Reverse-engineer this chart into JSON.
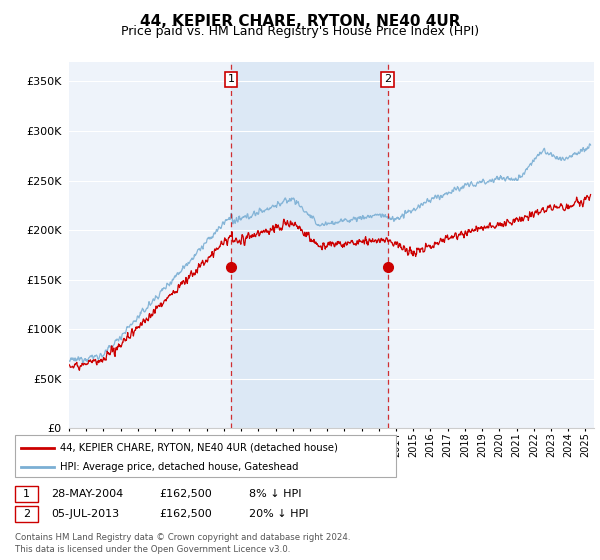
{
  "title": "44, KEPIER CHARE, RYTON, NE40 4UR",
  "subtitle": "Price paid vs. HM Land Registry's House Price Index (HPI)",
  "ylim": [
    0,
    370000
  ],
  "xlim_start": 1995.0,
  "xlim_end": 2025.5,
  "red_color": "#cc0000",
  "blue_color": "#7bafd4",
  "shade_color": "#dce8f5",
  "vline_color": "#cc0000",
  "grid_color": "#cccccc",
  "bg_color": "#eef3fa",
  "sale1_x": 2004.41,
  "sale1_y": 162500,
  "sale2_x": 2013.51,
  "sale2_y": 162500,
  "legend_red": "44, KEPIER CHARE, RYTON, NE40 4UR (detached house)",
  "legend_blue": "HPI: Average price, detached house, Gateshead",
  "annotation1_label": "1",
  "annotation2_label": "2",
  "table_row1": [
    "1",
    "28-MAY-2004",
    "£162,500",
    "8% ↓ HPI"
  ],
  "table_row2": [
    "2",
    "05-JUL-2013",
    "£162,500",
    "20% ↓ HPI"
  ],
  "footer": "Contains HM Land Registry data © Crown copyright and database right 2024.\nThis data is licensed under the Open Government Licence v3.0.",
  "title_fontsize": 11,
  "subtitle_fontsize": 9
}
